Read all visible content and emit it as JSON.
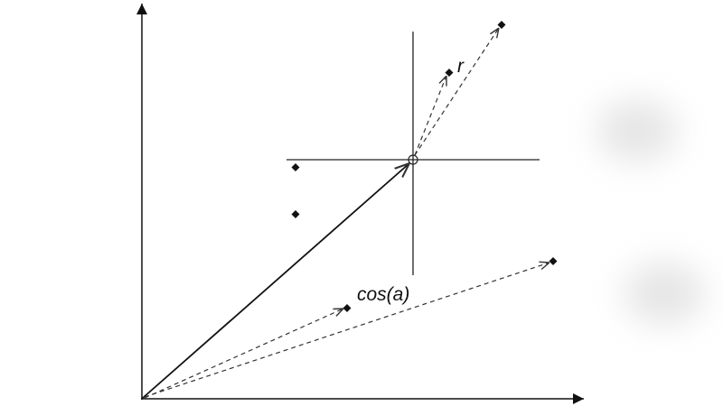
{
  "labels": {
    "r": "r",
    "cos": "cos(a)"
  },
  "colors": {
    "ink": "#111111",
    "dashed": "#333333"
  }
}
